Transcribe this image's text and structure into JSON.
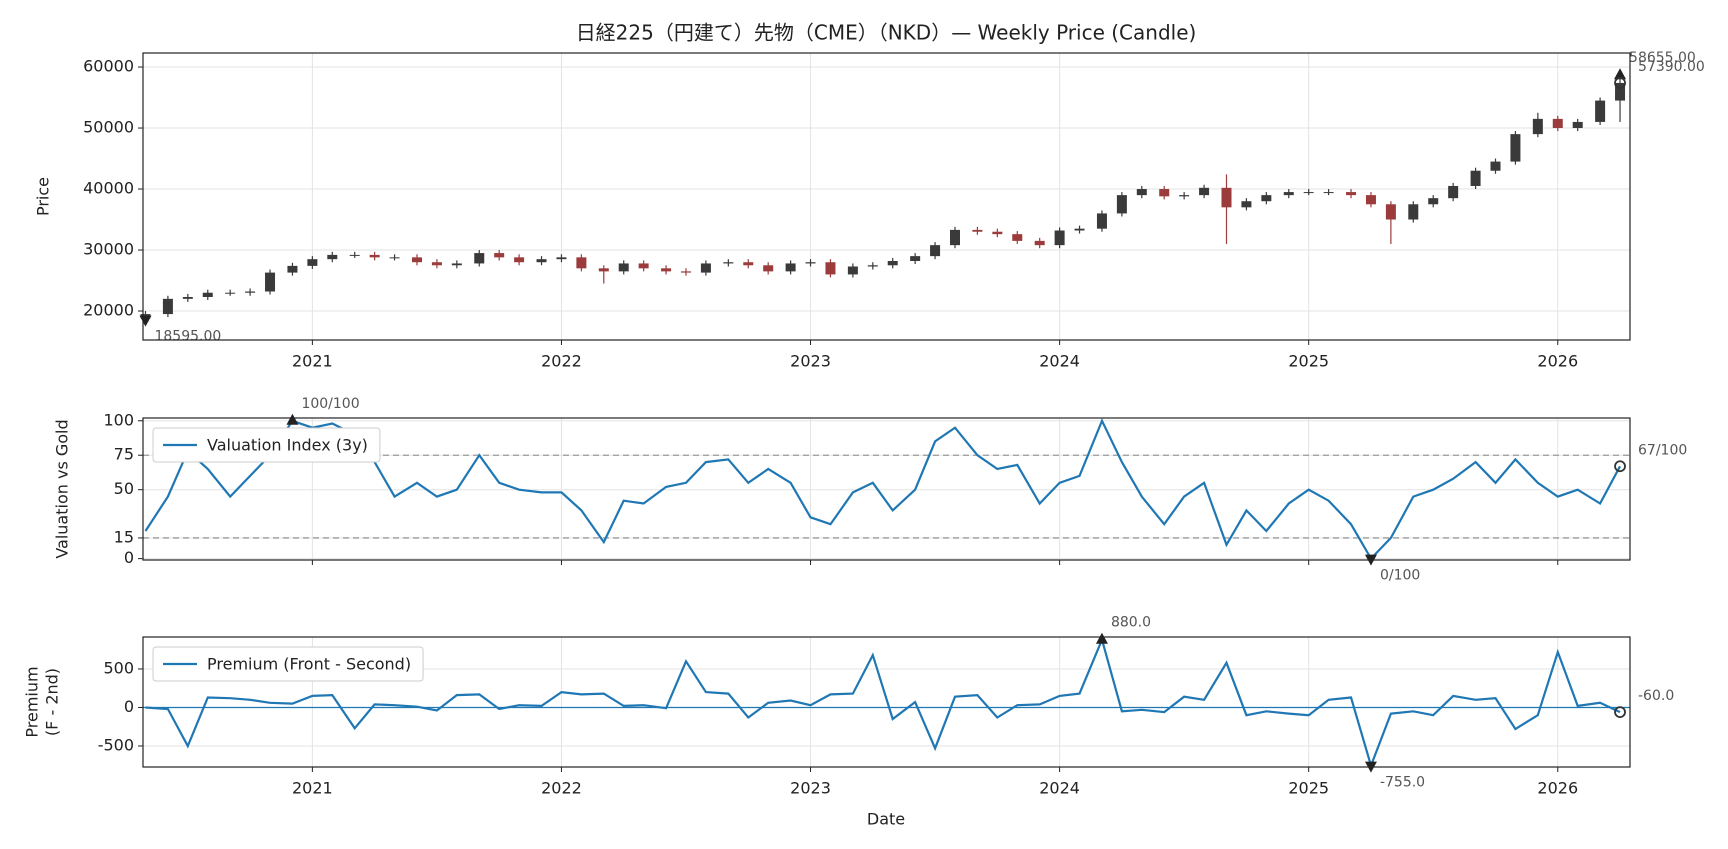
{
  "chart_data": [
    {
      "type": "candlestick",
      "title": "日経225（円建て）先物（CME）（NKD）— Weekly Price (Candle)",
      "ylabel": [
        "Price"
      ],
      "x": [
        2020.33,
        2020.42,
        2020.5,
        2020.58,
        2020.67,
        2020.75,
        2020.83,
        2020.92,
        2021,
        2021.08,
        2021.17,
        2021.25,
        2021.33,
        2021.42,
        2021.5,
        2021.58,
        2021.67,
        2021.75,
        2021.83,
        2021.92,
        2022,
        2022.08,
        2022.17,
        2022.25,
        2022.33,
        2022.42,
        2022.5,
        2022.58,
        2022.67,
        2022.75,
        2022.83,
        2022.92,
        2023,
        2023.08,
        2023.17,
        2023.25,
        2023.33,
        2023.42,
        2023.5,
        2023.58,
        2023.67,
        2023.75,
        2023.83,
        2023.92,
        2024,
        2024.08,
        2024.17,
        2024.25,
        2024.33,
        2024.42,
        2024.5,
        2024.58,
        2024.67,
        2024.75,
        2024.83,
        2024.92,
        2025,
        2025.08,
        2025.17,
        2025.25,
        2025.33,
        2025.42,
        2025.5,
        2025.58,
        2025.67,
        2025.75,
        2025.83,
        2025.92,
        2026,
        2026.08,
        2026.17,
        2026.25
      ],
      "open": [
        18800,
        19500,
        22000,
        22300,
        23000,
        23000,
        23200,
        26300,
        27400,
        28500,
        29200,
        29200,
        28800,
        28800,
        28000,
        27500,
        27800,
        29500,
        28800,
        28000,
        28500,
        28800,
        27000,
        26500,
        27800,
        27000,
        26500,
        26300,
        27800,
        28000,
        27500,
        26500,
        27800,
        28000,
        26000,
        27300,
        27500,
        28200,
        29000,
        30800,
        33300,
        33000,
        32600,
        31500,
        30800,
        33200,
        33500,
        36000,
        39000,
        40000,
        38800,
        39000,
        40200,
        37000,
        38000,
        39000,
        39500,
        39500,
        39500,
        39000,
        37500,
        35000,
        37500,
        38500,
        40500,
        43000,
        44500,
        49000,
        51500,
        50000,
        51000,
        54500
      ],
      "high": [
        20000,
        22500,
        22800,
        23500,
        23500,
        23700,
        26800,
        27900,
        29000,
        29700,
        29700,
        29700,
        29300,
        29300,
        28500,
        28300,
        30000,
        30000,
        29300,
        29000,
        29300,
        29300,
        27500,
        28300,
        28300,
        27500,
        27000,
        28300,
        28500,
        28500,
        28000,
        28300,
        28500,
        28500,
        27800,
        28000,
        28700,
        29500,
        31300,
        33800,
        33800,
        33500,
        33100,
        32000,
        33700,
        34000,
        36500,
        39500,
        40500,
        40500,
        39500,
        40700,
        42400,
        38500,
        39500,
        40000,
        40000,
        40000,
        40000,
        39500,
        38000,
        38000,
        39000,
        41000,
        43500,
        45000,
        49500,
        52500,
        52000,
        51500,
        55000,
        58655
      ],
      "low": [
        18595,
        19000,
        21500,
        21800,
        22500,
        22500,
        22700,
        25800,
        26900,
        28000,
        28700,
        28300,
        28300,
        27500,
        27000,
        27000,
        27300,
        28300,
        27500,
        27500,
        28000,
        26500,
        24500,
        26000,
        26500,
        26000,
        25800,
        25800,
        27300,
        27000,
        26000,
        26000,
        27300,
        25500,
        25500,
        26800,
        27000,
        27700,
        28500,
        30300,
        32500,
        32100,
        31000,
        30300,
        30300,
        32700,
        33000,
        35500,
        38500,
        38300,
        38300,
        38500,
        31000,
        36500,
        37500,
        38500,
        39000,
        39000,
        38500,
        37000,
        31000,
        34500,
        37000,
        38000,
        40000,
        42500,
        44000,
        48500,
        49500,
        49500,
        50500,
        51000
      ],
      "close": [
        19500,
        22000,
        22300,
        23000,
        23000,
        23200,
        26300,
        27400,
        28500,
        29200,
        29200,
        28800,
        28800,
        28000,
        27500,
        27800,
        29500,
        28800,
        28000,
        28500,
        28800,
        27000,
        26500,
        27800,
        27000,
        26500,
        26300,
        27800,
        28000,
        27500,
        26500,
        27800,
        28000,
        26000,
        27300,
        27500,
        28200,
        29000,
        30800,
        33300,
        33000,
        32600,
        31500,
        30800,
        33200,
        33500,
        36000,
        39000,
        40000,
        38800,
        39000,
        40200,
        37000,
        38000,
        39000,
        39500,
        39500,
        39500,
        39000,
        37500,
        35000,
        37500,
        38500,
        40500,
        43000,
        44500,
        49000,
        51500,
        50000,
        51000,
        54500,
        57390
      ],
      "up_color": "#3a3a3a",
      "down_color": "#9b3b3b",
      "xlim": [
        2020.32,
        2026.29
      ],
      "xticks": [
        2021,
        2022,
        2023,
        2024,
        2025,
        2026
      ],
      "show_xtick_labels": true,
      "ylim": [
        15250,
        62300
      ],
      "yticks": [
        20000,
        30000,
        40000,
        50000,
        60000
      ],
      "grid": true,
      "annotations": {
        "max": {
          "x": 2026.25,
          "value": 58655,
          "label": "58655.00"
        },
        "min": {
          "x": 2020.33,
          "value": 18595,
          "label": "18595.00"
        },
        "last": {
          "x": 2026.25,
          "value": 57390,
          "label": "57390.00"
        }
      }
    },
    {
      "type": "line",
      "ylabel": [
        "Valuation vs Gold"
      ],
      "x": [
        2020.33,
        2020.42,
        2020.5,
        2020.58,
        2020.67,
        2020.75,
        2020.83,
        2020.92,
        2021,
        2021.08,
        2021.17,
        2021.25,
        2021.33,
        2021.42,
        2021.5,
        2021.58,
        2021.67,
        2021.75,
        2021.83,
        2021.92,
        2022,
        2022.08,
        2022.17,
        2022.25,
        2022.33,
        2022.42,
        2022.5,
        2022.58,
        2022.67,
        2022.75,
        2022.83,
        2022.92,
        2023,
        2023.08,
        2023.17,
        2023.25,
        2023.33,
        2023.42,
        2023.5,
        2023.58,
        2023.67,
        2023.75,
        2023.83,
        2023.92,
        2024,
        2024.08,
        2024.17,
        2024.25,
        2024.33,
        2024.42,
        2024.5,
        2024.58,
        2024.67,
        2024.75,
        2024.83,
        2024.92,
        2025,
        2025.08,
        2025.17,
        2025.25,
        2025.33,
        2025.42,
        2025.5,
        2025.58,
        2025.67,
        2025.75,
        2025.83,
        2025.92,
        2026,
        2026.08,
        2026.17,
        2026.25
      ],
      "series": [
        {
          "name": "Valuation Index (3y)",
          "color": "#1f77b4",
          "values": [
            20,
            45,
            78,
            65,
            45,
            60,
            75,
            100,
            95,
            98,
            90,
            70,
            45,
            55,
            45,
            50,
            75,
            55,
            50,
            48,
            48,
            35,
            12,
            42,
            40,
            52,
            55,
            70,
            72,
            55,
            65,
            55,
            30,
            25,
            48,
            55,
            35,
            50,
            85,
            95,
            75,
            65,
            68,
            40,
            55,
            60,
            100,
            70,
            45,
            25,
            45,
            55,
            10,
            35,
            20,
            40,
            50,
            42,
            25,
            0,
            15,
            45,
            50,
            58,
            70,
            55,
            72,
            55,
            45,
            50,
            40,
            67
          ]
        }
      ],
      "xlim": [
        2020.32,
        2026.29
      ],
      "xticks": [
        2021,
        2022,
        2023,
        2024,
        2025,
        2026
      ],
      "show_xtick_labels": false,
      "ylim": [
        -1,
        102
      ],
      "yticks": [
        0,
        15,
        50,
        75,
        100
      ],
      "grid": true,
      "hlines": [
        15,
        75
      ],
      "hline_color": "#999999",
      "hline_dashed": true,
      "legend": "upper left",
      "annotations": {
        "max": {
          "x": 2020.92,
          "value": 100,
          "label": "100/100"
        },
        "min": {
          "x": 2025.25,
          "value": 0,
          "label": "0/100"
        },
        "last": {
          "x": 2026.25,
          "value": 67,
          "label": "67/100"
        }
      }
    },
    {
      "type": "line",
      "ylabel": [
        "Premium",
        "(F - 2nd)"
      ],
      "xlabel": "Date",
      "x": [
        2020.33,
        2020.42,
        2020.5,
        2020.58,
        2020.67,
        2020.75,
        2020.83,
        2020.92,
        2021,
        2021.08,
        2021.17,
        2021.25,
        2021.33,
        2021.42,
        2021.5,
        2021.58,
        2021.67,
        2021.75,
        2021.83,
        2021.92,
        2022,
        2022.08,
        2022.17,
        2022.25,
        2022.33,
        2022.42,
        2022.5,
        2022.58,
        2022.67,
        2022.75,
        2022.83,
        2022.92,
        2023,
        2023.08,
        2023.17,
        2023.25,
        2023.33,
        2023.42,
        2023.5,
        2023.58,
        2023.67,
        2023.75,
        2023.83,
        2023.92,
        2024,
        2024.08,
        2024.17,
        2024.25,
        2024.33,
        2024.42,
        2024.5,
        2024.58,
        2024.67,
        2024.75,
        2024.83,
        2024.92,
        2025,
        2025.08,
        2025.17,
        2025.25,
        2025.33,
        2025.42,
        2025.5,
        2025.58,
        2025.67,
        2025.75,
        2025.83,
        2025.92,
        2026,
        2026.08,
        2026.17,
        2026.25
      ],
      "series": [
        {
          "name": "Premium (Front - Second)",
          "color": "#1f77b4",
          "values": [
            0,
            -20,
            -500,
            130,
            120,
            100,
            60,
            50,
            150,
            160,
            -270,
            40,
            30,
            10,
            -40,
            160,
            170,
            -20,
            30,
            20,
            200,
            170,
            180,
            20,
            30,
            -10,
            600,
            200,
            180,
            -130,
            60,
            90,
            30,
            170,
            180,
            680,
            -150,
            70,
            -530,
            140,
            160,
            -130,
            30,
            40,
            150,
            180,
            880,
            -50,
            -30,
            -60,
            140,
            100,
            580,
            -100,
            -50,
            -80,
            -100,
            100,
            130,
            -755,
            -80,
            -50,
            -100,
            150,
            100,
            120,
            -280,
            -100,
            720,
            20,
            60,
            -60
          ]
        }
      ],
      "xlim": [
        2020.32,
        2026.29
      ],
      "xticks": [
        2021,
        2022,
        2023,
        2024,
        2025,
        2026
      ],
      "show_xtick_labels": true,
      "ylim": [
        -773,
        915
      ],
      "yticks": [
        -500,
        0,
        500
      ],
      "grid": true,
      "hlines": [
        0
      ],
      "hline_color": "#1f77b4",
      "hline_dashed": false,
      "legend": "upper left",
      "annotations": {
        "max": {
          "x": 2024.17,
          "value": 880,
          "label": "880.0"
        },
        "min": {
          "x": 2025.25,
          "value": -755,
          "label": "-755.0"
        },
        "last": {
          "x": 2026.25,
          "value": -60,
          "label": "-60.0"
        }
      }
    }
  ]
}
